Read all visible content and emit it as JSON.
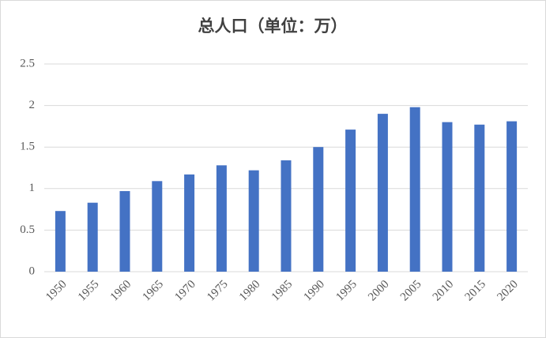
{
  "chart_data": {
    "type": "bar",
    "title": "总人口（单位：万）",
    "categories": [
      "1950",
      "1955",
      "1960",
      "1965",
      "1970",
      "1975",
      "1980",
      "1985",
      "1990",
      "1995",
      "2000",
      "2005",
      "2010",
      "2015",
      "2020"
    ],
    "values": [
      0.73,
      0.83,
      0.97,
      1.09,
      1.17,
      1.28,
      1.22,
      1.34,
      1.5,
      1.71,
      1.9,
      1.98,
      1.8,
      1.77,
      1.81
    ],
    "color": "#4472c4",
    "ylim": [
      0,
      2.5
    ],
    "yticks": [
      0,
      0.5,
      1,
      1.5,
      2,
      2.5
    ],
    "grid": true
  }
}
